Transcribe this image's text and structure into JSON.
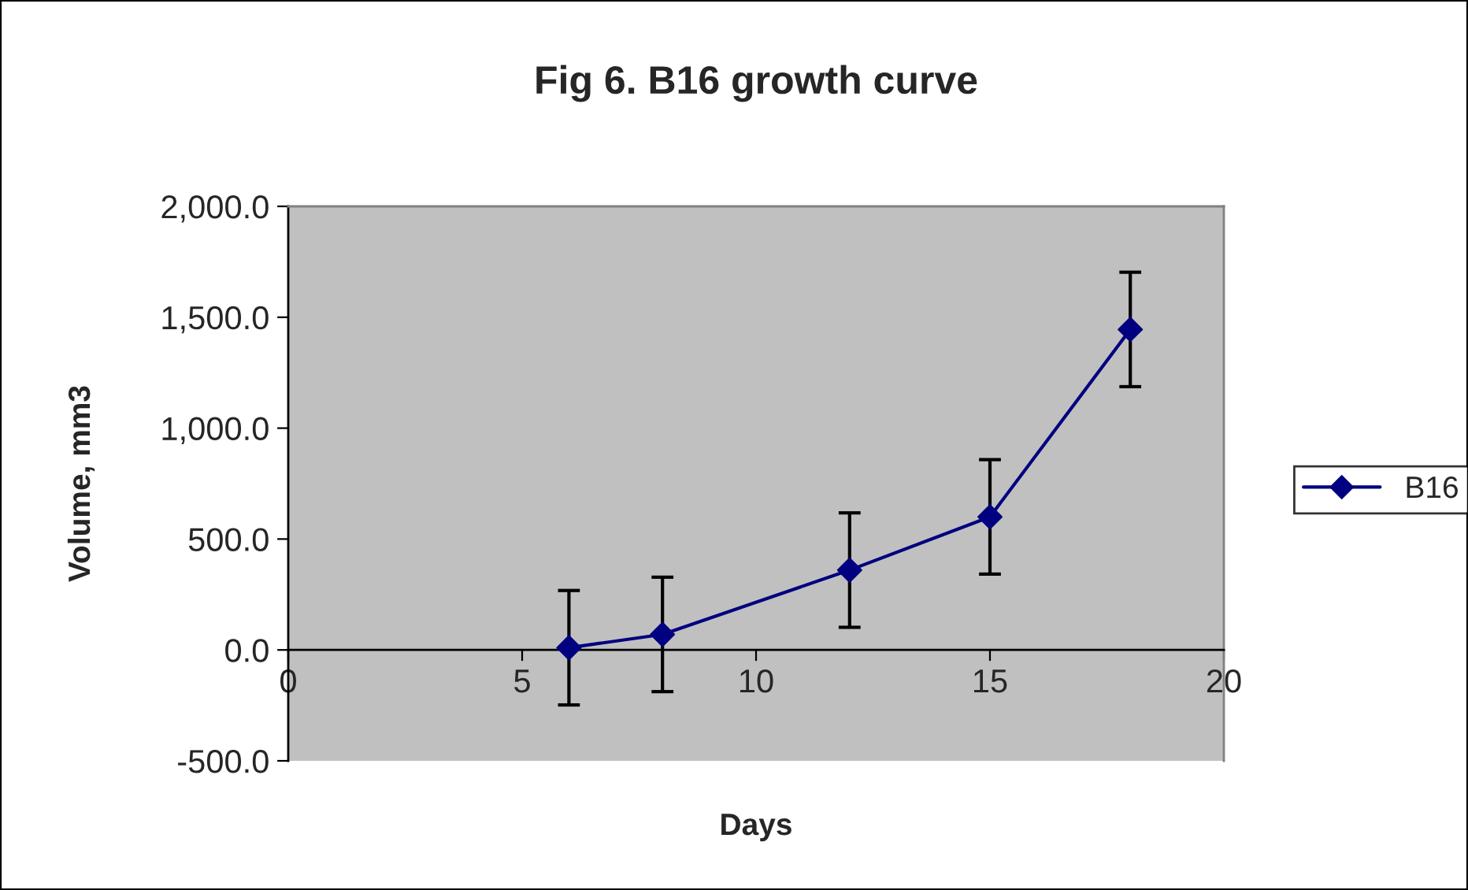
{
  "chart_data": {
    "type": "line",
    "title": "Fig 6. B16 growth curve",
    "xlabel": "Days",
    "ylabel": "Volume, mm3",
    "x": [
      6,
      8,
      12,
      15,
      18
    ],
    "series": [
      {
        "name": "B16",
        "color": "#000080",
        "values": [
          10,
          70,
          360,
          600,
          1445
        ],
        "errors": [
          258,
          258,
          258,
          258,
          258
        ]
      }
    ],
    "xlim": [
      0,
      20
    ],
    "xticks": [
      0,
      5,
      10,
      15,
      20
    ],
    "ylim": [
      -500,
      2000
    ],
    "yticks": [
      {
        "value": -500,
        "label": "-500.0"
      },
      {
        "value": 0,
        "label": "0.0"
      },
      {
        "value": 500,
        "label": "500.0"
      },
      {
        "value": 1000,
        "label": "1,000.0"
      },
      {
        "value": 1500,
        "label": "1,500.0"
      },
      {
        "value": 2000,
        "label": "2,000.0"
      }
    ],
    "grid": false,
    "legend": "right",
    "marker": "diamond",
    "line_style": "solid"
  }
}
